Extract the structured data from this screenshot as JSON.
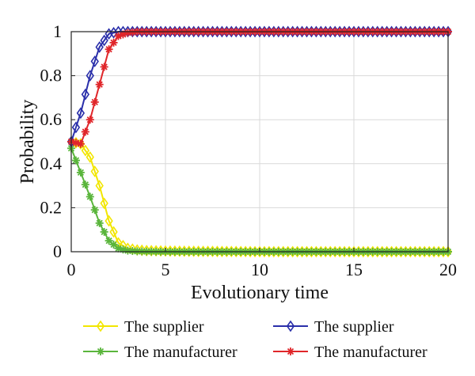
{
  "chart_data": {
    "type": "line",
    "xlabel": "Evolutionary time",
    "ylabel": "Probability",
    "xlim": [
      0,
      20
    ],
    "ylim": [
      0,
      1
    ],
    "xticks": [
      0,
      5,
      10,
      15,
      20
    ],
    "xtick_labels": [
      "0",
      "5",
      "10",
      "15",
      "20"
    ],
    "yticks": [
      0,
      0.2,
      0.4,
      0.6,
      0.8,
      1
    ],
    "ytick_labels": [
      "0",
      "0.2",
      "0.4",
      "0.6",
      "0.8",
      "1"
    ],
    "grid": true,
    "legend_position": "bottom",
    "series": [
      {
        "name": "The supplier",
        "color": "#f2e600",
        "marker": "diamond",
        "x": [
          0,
          0.5,
          1,
          1.5,
          2,
          2.5,
          3,
          3.5,
          4,
          5,
          6,
          8,
          10,
          12,
          14,
          16,
          18,
          20
        ],
        "y": [
          0.5,
          0.49,
          0.43,
          0.3,
          0.14,
          0.04,
          0.015,
          0.008,
          0.005,
          0.003,
          0.002,
          0.001,
          0,
          0,
          0,
          0,
          0,
          0
        ]
      },
      {
        "name": "The manufacturer",
        "color": "#5ab53c",
        "marker": "asterisk",
        "x": [
          0,
          0.5,
          1,
          1.5,
          2,
          2.5,
          3,
          3.5,
          4,
          5,
          6,
          8,
          10,
          12,
          14,
          16,
          18,
          20
        ],
        "y": [
          0.47,
          0.36,
          0.25,
          0.13,
          0.05,
          0.015,
          0.005,
          0.002,
          0.001,
          0,
          0,
          0,
          0,
          0,
          0,
          0,
          0,
          0
        ]
      },
      {
        "name": "The supplier",
        "color": "#2a2faa",
        "marker": "diamond",
        "x": [
          0,
          0.5,
          1,
          1.5,
          2,
          2.5,
          3,
          3.5,
          4,
          5,
          6,
          8,
          10,
          12,
          14,
          16,
          18,
          20
        ],
        "y": [
          0.5,
          0.63,
          0.8,
          0.93,
          0.99,
          1.0,
          1.0,
          1.0,
          1.0,
          1.0,
          1.0,
          1.0,
          1.0,
          1.0,
          1.0,
          1.0,
          1.0,
          1.0
        ]
      },
      {
        "name": "The manufacturer",
        "color": "#e0262a",
        "marker": "asterisk",
        "x": [
          0,
          0.5,
          1,
          1.5,
          2,
          2.5,
          3,
          3.5,
          4,
          5,
          6,
          8,
          10,
          12,
          14,
          16,
          18,
          20
        ],
        "y": [
          0.5,
          0.49,
          0.6,
          0.76,
          0.92,
          0.98,
          0.995,
          1.0,
          1.0,
          1.0,
          1.0,
          1.0,
          1.0,
          1.0,
          1.0,
          1.0,
          1.0,
          1.0
        ]
      }
    ]
  }
}
